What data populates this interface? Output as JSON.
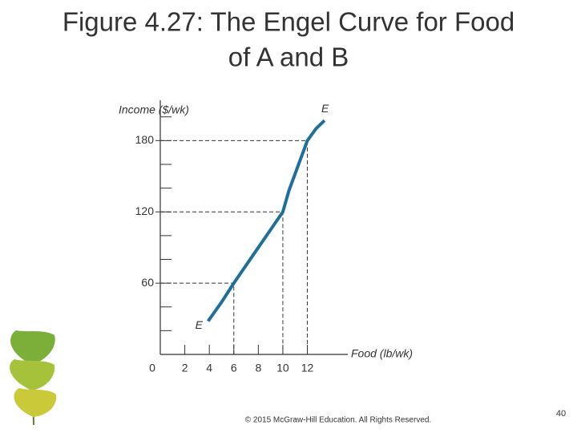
{
  "title_lines": [
    "Figure 4.27: The Engel Curve for Food",
    "of A and B"
  ],
  "footer": "© 2015 McGraw-Hill Education. All Rights Reserved.",
  "page_number": "40",
  "chart_data": {
    "type": "line",
    "y_label": "Income ($/wk)",
    "x_label": "Food (lb/wk)",
    "curve_label": "E",
    "series": [
      {
        "name": "E",
        "color": "#1f6f9c",
        "x": [
          3.9,
          5,
          6,
          7,
          8,
          9,
          10,
          10.5,
          11,
          11.5,
          12,
          12.7,
          13.4
        ],
        "values": [
          28,
          44,
          60,
          75,
          90,
          105,
          120,
          138,
          152,
          166,
          180,
          190,
          197
        ]
      }
    ],
    "guides": [
      {
        "x": 6,
        "y": 60
      },
      {
        "x": 10,
        "y": 120
      },
      {
        "x": 12,
        "y": 180
      }
    ],
    "xlim": [
      0,
      15.3
    ],
    "ylim": [
      0,
      214
    ],
    "xticks": [
      0,
      2,
      4,
      6,
      8,
      10,
      12
    ],
    "yticks": [
      60,
      120,
      180
    ]
  }
}
